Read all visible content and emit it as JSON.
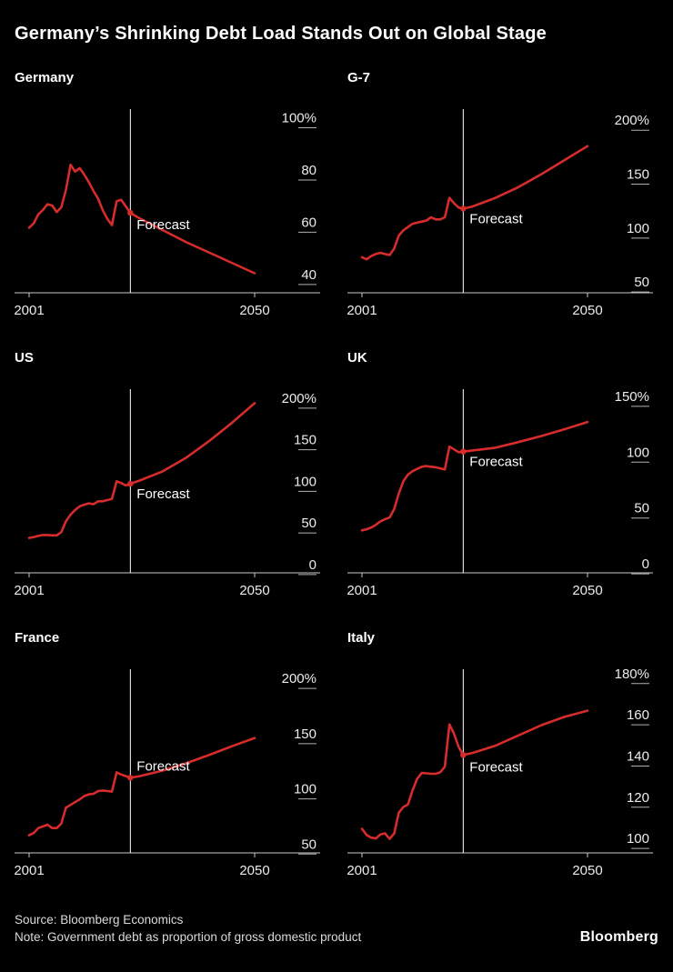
{
  "title": "Germany’s Shrinking Debt Load Stands Out on Global Stage",
  "forecast_label": "Forecast",
  "footer": {
    "source": "Source: Bloomberg Economics",
    "note": "Note: Government debt as proportion of gross domestic product",
    "brand": "Bloomberg"
  },
  "colors": {
    "background": "#000000",
    "line": "#d62c2c",
    "forecast_divider": "#ffffff",
    "axis": "#c8c8c8",
    "tick_dash": "#b0b0b0",
    "text": "#ececec",
    "label": "#ffffff"
  },
  "chart_data": [
    {
      "type": "line",
      "title": "Germany",
      "xlabel": "",
      "ylabel": "",
      "unit": "%",
      "x_start": 2001,
      "x_end": 2050,
      "forecast_start": 2023,
      "forecast_label_dy": 18,
      "ylim": [
        33,
        104
      ],
      "yticks": [
        100,
        80,
        60,
        40
      ],
      "grid": false,
      "series": [
        [
          2001,
          57.9
        ],
        [
          2002,
          59.6
        ],
        [
          2003,
          63.0
        ],
        [
          2004,
          64.7
        ],
        [
          2005,
          66.9
        ],
        [
          2006,
          66.4
        ],
        [
          2007,
          63.9
        ],
        [
          2008,
          65.7
        ],
        [
          2009,
          72.4
        ],
        [
          2010,
          82.0
        ],
        [
          2011,
          79.4
        ],
        [
          2012,
          80.7
        ],
        [
          2013,
          78.2
        ],
        [
          2014,
          75.3
        ],
        [
          2015,
          71.9
        ],
        [
          2016,
          69.0
        ],
        [
          2017,
          64.6
        ],
        [
          2018,
          61.3
        ],
        [
          2019,
          58.9
        ],
        [
          2020,
          68.0
        ],
        [
          2021,
          68.6
        ],
        [
          2022,
          66.1
        ],
        [
          2023,
          63.6
        ],
        [
          2025,
          61.5
        ],
        [
          2030,
          57.0
        ],
        [
          2035,
          52.5
        ],
        [
          2040,
          48.5
        ],
        [
          2045,
          44.5
        ],
        [
          2050,
          40.5
        ]
      ]
    },
    {
      "type": "line",
      "title": "G-7",
      "xlabel": "",
      "ylabel": "",
      "unit": "%",
      "x_start": 2001,
      "x_end": 2050,
      "forecast_start": 2023,
      "forecast_label_dy": 16,
      "ylim": [
        40,
        212
      ],
      "yticks": [
        200,
        150,
        100,
        50
      ],
      "grid": false,
      "series": [
        [
          2001,
          73
        ],
        [
          2002,
          71
        ],
        [
          2003,
          74
        ],
        [
          2004,
          76
        ],
        [
          2005,
          77
        ],
        [
          2006,
          76
        ],
        [
          2007,
          75
        ],
        [
          2008,
          81
        ],
        [
          2009,
          93
        ],
        [
          2010,
          98
        ],
        [
          2011,
          101
        ],
        [
          2012,
          104
        ],
        [
          2013,
          105
        ],
        [
          2014,
          106
        ],
        [
          2015,
          107
        ],
        [
          2016,
          110
        ],
        [
          2017,
          108
        ],
        [
          2018,
          108
        ],
        [
          2019,
          110
        ],
        [
          2020,
          128
        ],
        [
          2021,
          123
        ],
        [
          2022,
          119
        ],
        [
          2023,
          118
        ],
        [
          2025,
          120
        ],
        [
          2030,
          128
        ],
        [
          2035,
          138
        ],
        [
          2040,
          150
        ],
        [
          2045,
          163
        ],
        [
          2050,
          176
        ]
      ]
    },
    {
      "type": "line",
      "title": "US",
      "xlabel": "",
      "ylabel": "",
      "unit": "%",
      "x_start": 2001,
      "x_end": 2050,
      "forecast_start": 2023,
      "forecast_label_dy": 16,
      "ylim": [
        -10,
        213
      ],
      "yticks": [
        200,
        150,
        100,
        50,
        0
      ],
      "grid": false,
      "series": [
        [
          2001,
          32
        ],
        [
          2002,
          33
        ],
        [
          2003,
          34.5
        ],
        [
          2004,
          35.5
        ],
        [
          2005,
          35.5
        ],
        [
          2006,
          35
        ],
        [
          2007,
          35
        ],
        [
          2008,
          39
        ],
        [
          2009,
          52
        ],
        [
          2010,
          60
        ],
        [
          2011,
          65.5
        ],
        [
          2012,
          70
        ],
        [
          2013,
          72
        ],
        [
          2014,
          73.5
        ],
        [
          2015,
          72.5
        ],
        [
          2016,
          76
        ],
        [
          2017,
          76
        ],
        [
          2018,
          77.5
        ],
        [
          2019,
          79
        ],
        [
          2020,
          100
        ],
        [
          2021,
          98
        ],
        [
          2022,
          95
        ],
        [
          2023,
          97
        ],
        [
          2025,
          101
        ],
        [
          2030,
          112
        ],
        [
          2035,
          128
        ],
        [
          2040,
          148
        ],
        [
          2045,
          170
        ],
        [
          2050,
          194
        ]
      ]
    },
    {
      "type": "line",
      "title": "UK",
      "xlabel": "",
      "ylabel": "",
      "unit": "%",
      "x_start": 2001,
      "x_end": 2050,
      "forecast_start": 2023,
      "forecast_label_dy": 16,
      "ylim": [
        -8,
        158
      ],
      "yticks": [
        150,
        100,
        50,
        0
      ],
      "grid": false,
      "series": [
        [
          2001,
          30
        ],
        [
          2002,
          31
        ],
        [
          2003,
          32.5
        ],
        [
          2004,
          35
        ],
        [
          2005,
          38
        ],
        [
          2006,
          40
        ],
        [
          2007,
          41.5
        ],
        [
          2008,
          49
        ],
        [
          2009,
          63
        ],
        [
          2010,
          74
        ],
        [
          2011,
          80
        ],
        [
          2012,
          83
        ],
        [
          2013,
          85
        ],
        [
          2014,
          87
        ],
        [
          2015,
          87.5
        ],
        [
          2016,
          87
        ],
        [
          2017,
          86.5
        ],
        [
          2018,
          85.5
        ],
        [
          2019,
          84.5
        ],
        [
          2020,
          105
        ],
        [
          2021,
          102.5
        ],
        [
          2022,
          100
        ],
        [
          2023,
          100.5
        ],
        [
          2025,
          101.5
        ],
        [
          2030,
          104
        ],
        [
          2035,
          109
        ],
        [
          2040,
          114.5
        ],
        [
          2045,
          120.5
        ],
        [
          2050,
          127
        ]
      ]
    },
    {
      "type": "line",
      "title": "France",
      "xlabel": "",
      "ylabel": "",
      "unit": "%",
      "x_start": 2001,
      "x_end": 2050,
      "forecast_start": 2023,
      "forecast_label_dy": -8,
      "ylim": [
        42,
        210
      ],
      "yticks": [
        200,
        150,
        100,
        50
      ],
      "grid": false,
      "series": [
        [
          2001,
          58
        ],
        [
          2002,
          60
        ],
        [
          2003,
          64.5
        ],
        [
          2004,
          66
        ],
        [
          2005,
          67.5
        ],
        [
          2006,
          64.5
        ],
        [
          2007,
          64.5
        ],
        [
          2008,
          68.5
        ],
        [
          2009,
          83
        ],
        [
          2010,
          85.5
        ],
        [
          2011,
          88
        ],
        [
          2012,
          90.5
        ],
        [
          2013,
          93.5
        ],
        [
          2014,
          95
        ],
        [
          2015,
          95.5
        ],
        [
          2016,
          98
        ],
        [
          2017,
          98.5
        ],
        [
          2018,
          98
        ],
        [
          2019,
          97.5
        ],
        [
          2020,
          115
        ],
        [
          2021,
          113
        ],
        [
          2022,
          111.5
        ],
        [
          2023,
          110
        ],
        [
          2025,
          111.5
        ],
        [
          2030,
          116.5
        ],
        [
          2035,
          123
        ],
        [
          2040,
          130.5
        ],
        [
          2045,
          138.5
        ],
        [
          2050,
          146
        ]
      ]
    },
    {
      "type": "line",
      "title": "Italy",
      "xlabel": "",
      "ylabel": "",
      "unit": "%",
      "x_start": 2001,
      "x_end": 2050,
      "forecast_start": 2023,
      "forecast_label_dy": 18,
      "ylim": [
        93,
        183
      ],
      "yticks": [
        180,
        160,
        140,
        120,
        100
      ],
      "grid": false,
      "series": [
        [
          2001,
          104.7
        ],
        [
          2002,
          101.7
        ],
        [
          2003,
          100.4
        ],
        [
          2004,
          100.0
        ],
        [
          2005,
          101.9
        ],
        [
          2006,
          102.5
        ],
        [
          2007,
          99.8
        ],
        [
          2008,
          102.4
        ],
        [
          2009,
          112.5
        ],
        [
          2010,
          115.3
        ],
        [
          2011,
          116.5
        ],
        [
          2012,
          123.4
        ],
        [
          2013,
          129.0
        ],
        [
          2014,
          131.8
        ],
        [
          2015,
          131.6
        ],
        [
          2016,
          131.4
        ],
        [
          2017,
          131.4
        ],
        [
          2018,
          132.1
        ],
        [
          2019,
          134.8
        ],
        [
          2020,
          155.3
        ],
        [
          2021,
          150.8
        ],
        [
          2022,
          144.4
        ],
        [
          2023,
          140.5
        ],
        [
          2025,
          141.5
        ],
        [
          2030,
          145
        ],
        [
          2035,
          150
        ],
        [
          2040,
          155
        ],
        [
          2045,
          159
        ],
        [
          2050,
          162
        ]
      ]
    }
  ]
}
